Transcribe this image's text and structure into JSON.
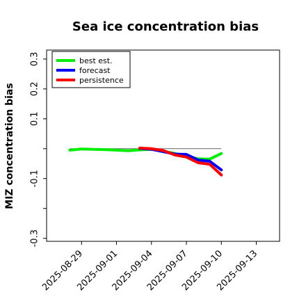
{
  "chart_data": {
    "type": "line",
    "title": "Sea ice concentration bias",
    "xlabel": "",
    "ylabel": "MIZ concentration bias",
    "xlim": [
      "2025-08-26",
      "2025-09-15"
    ],
    "ylim": [
      -0.31,
      0.33
    ],
    "yticks": [
      -0.3,
      -0.2,
      -0.1,
      0.0,
      0.1,
      0.2,
      0.3
    ],
    "ytick_labels": [
      "-0.3",
      "",
      "-0.1",
      "",
      "0.1",
      "0.2",
      "0.3"
    ],
    "xticks": [
      "2025-08-29",
      "2025-09-01",
      "2025-09-04",
      "2025-09-07",
      "2025-09-10",
      "2025-09-13"
    ],
    "highlight_xtick": "2025-09-04",
    "highlight_color": "#228b22",
    "reference_line": 0.0,
    "legend_position": "top-left",
    "series": [
      {
        "name": "best est.",
        "color": "#00ee00",
        "x": [
          "2025-08-28",
          "2025-08-29",
          "2025-08-30",
          "2025-08-31",
          "2025-09-01",
          "2025-09-02",
          "2025-09-03",
          "2025-09-04",
          "2025-09-05",
          "2025-09-06",
          "2025-09-07",
          "2025-09-08",
          "2025-09-09",
          "2025-09-10"
        ],
        "values": [
          -0.005,
          -0.001,
          -0.002,
          -0.003,
          -0.005,
          -0.007,
          -0.004,
          -0.002,
          -0.008,
          -0.016,
          -0.025,
          -0.034,
          -0.035,
          -0.016
        ]
      },
      {
        "name": "forecast",
        "color": "#0000ff",
        "x": [
          "2025-09-03",
          "2025-09-04",
          "2025-09-05",
          "2025-09-06",
          "2025-09-07",
          "2025-09-08",
          "2025-09-09",
          "2025-09-10"
        ],
        "values": [
          0.001,
          -0.002,
          -0.01,
          -0.018,
          -0.019,
          -0.038,
          -0.042,
          -0.071
        ]
      },
      {
        "name": "persistence",
        "color": "#ff0000",
        "x": [
          "2025-09-03",
          "2025-09-04",
          "2025-09-05",
          "2025-09-06",
          "2025-09-07",
          "2025-09-08",
          "2025-09-09",
          "2025-09-10"
        ],
        "values": [
          0.002,
          0.0,
          -0.006,
          -0.021,
          -0.028,
          -0.047,
          -0.052,
          -0.088
        ]
      }
    ]
  }
}
